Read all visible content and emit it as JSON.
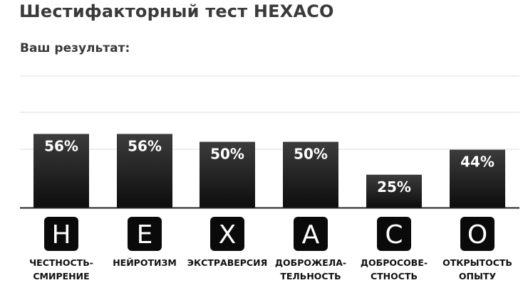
{
  "title": "Шестифакторный тест HEXACO",
  "subtitle": "Ваш результат:",
  "colors": {
    "bar_top": "#3c3c3c",
    "bar_bottom": "#0d0d0d",
    "value_text": "#ffffff",
    "grid": "#dddddd",
    "baseline": "#222222",
    "label_text": "#111111"
  },
  "chart_data": {
    "type": "bar",
    "title": "",
    "xlabel": "",
    "ylabel": "",
    "ylim": [
      0,
      100
    ],
    "grid": true,
    "categories": [
      {
        "letter": "H",
        "label_lines": [
          "ЧЕСТНОСТЬ-",
          "СМИРЕНИЕ"
        ]
      },
      {
        "letter": "E",
        "label_lines": [
          "НЕЙРОТИЗМ"
        ]
      },
      {
        "letter": "X",
        "label_lines": [
          "ЭКСТРАВЕРСИЯ"
        ]
      },
      {
        "letter": "A",
        "label_lines": [
          "ДОБРОЖЕЛА-",
          "ТЕЛЬНОСТЬ"
        ]
      },
      {
        "letter": "C",
        "label_lines": [
          "ДОБРОСОВЕ-",
          "СТНОСТЬ"
        ]
      },
      {
        "letter": "O",
        "label_lines": [
          "ОТКРЫТОСТЬ",
          "ОПЫТУ"
        ]
      }
    ],
    "values": [
      56,
      56,
      50,
      50,
      25,
      44
    ],
    "value_labels": [
      "56%",
      "56%",
      "50%",
      "50%",
      "25%",
      "44%"
    ]
  }
}
